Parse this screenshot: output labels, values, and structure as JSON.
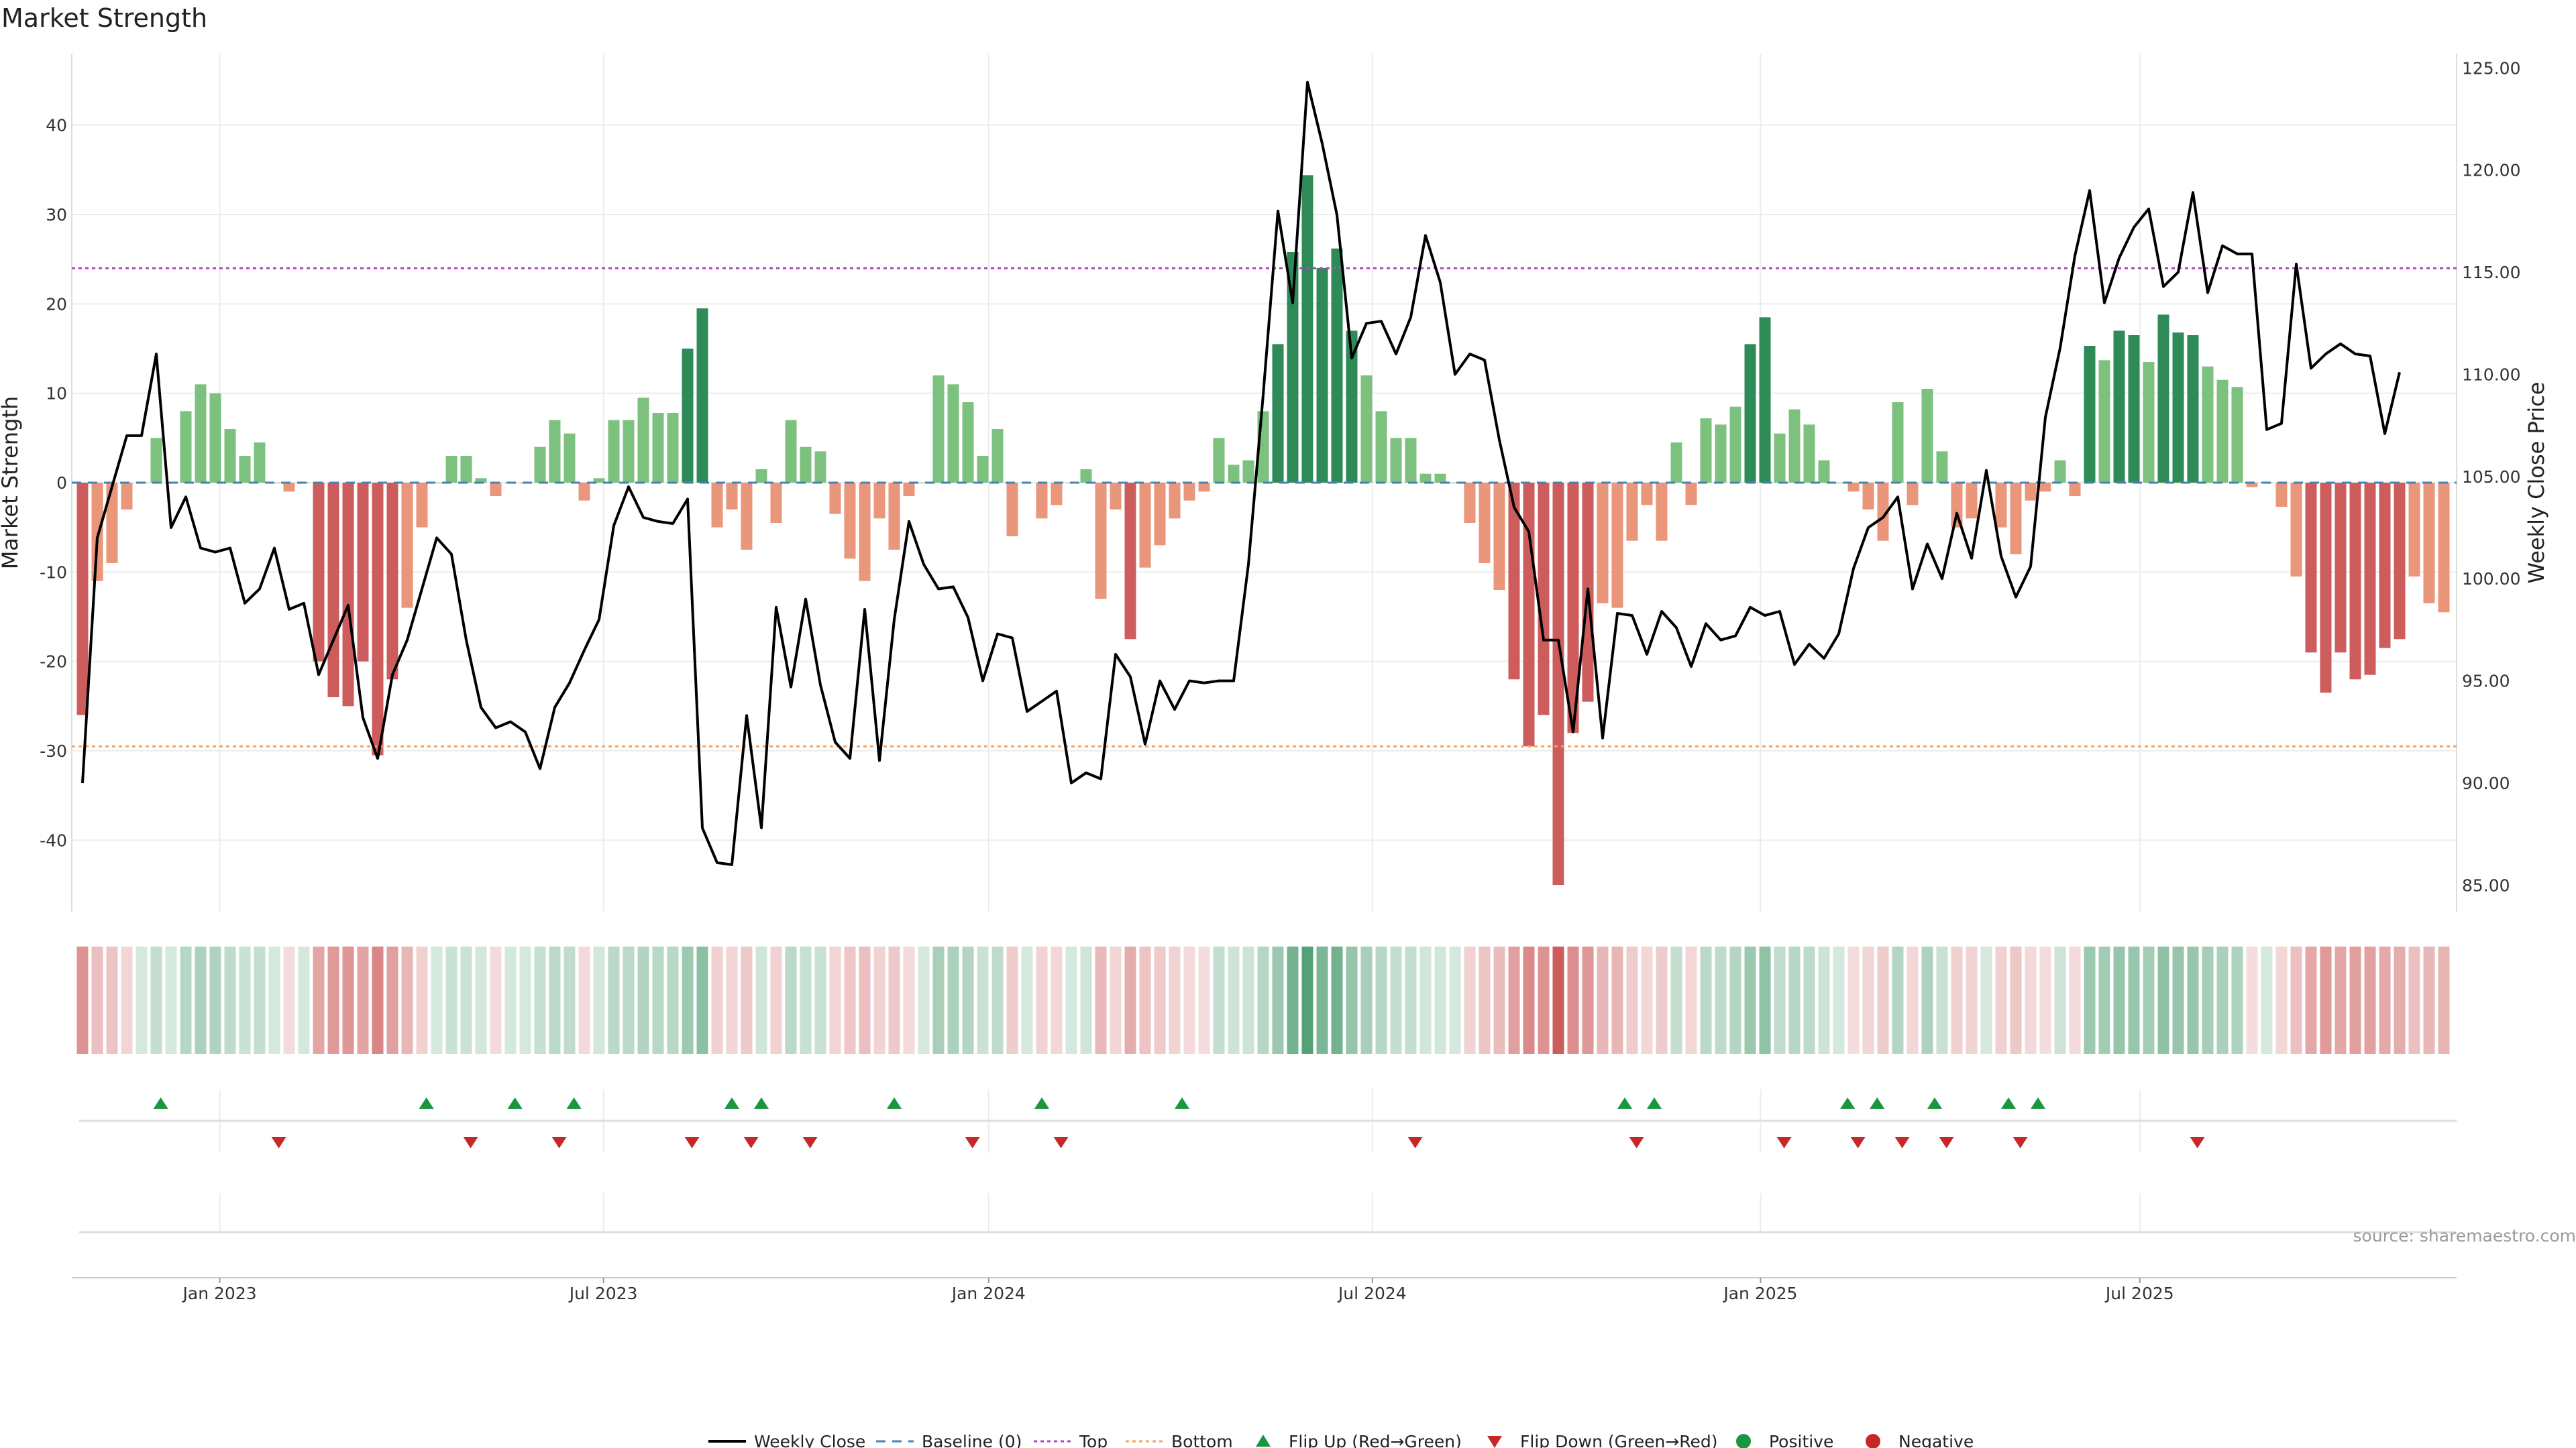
{
  "title": "Market Strength",
  "source": "source: sharemaestro.com",
  "colors": {
    "strong_green": "#2e8b57",
    "light_green": "#7cc17e",
    "strong_red": "#cd5c5c",
    "light_red": "#e9967a",
    "price_line": "#000000",
    "top_line": "#b146c2",
    "bottom_line": "#f4a460",
    "baseline": "#4682b4",
    "flip_up": "#1a9641",
    "flip_down": "#c62828",
    "grid": "#ececec"
  },
  "chart_data": {
    "type": "bar",
    "x_unit": "weeks from first bar (first bar = week of 2022-10-24)",
    "x_ticks": [
      {
        "label": "Jan 2023",
        "week": 9.3
      },
      {
        "label": "Jul 2023",
        "week": 35.3
      },
      {
        "label": "Jan 2024",
        "week": 61.4
      },
      {
        "label": "Jul 2024",
        "week": 87.4
      },
      {
        "label": "Jan 2025",
        "week": 113.7
      },
      {
        "label": "Jul 2025",
        "week": 139.4
      }
    ],
    "left_axis": {
      "label": "Market Strength",
      "ylim": [
        -48,
        48
      ],
      "ticks": [
        40,
        30,
        20,
        10,
        0,
        -10,
        -20,
        -30,
        -40
      ]
    },
    "right_axis": {
      "label": "Weekly Close Price",
      "ylim": [
        83.7,
        125.7
      ],
      "ticks": [
        "125.00",
        "120.00",
        "115.00",
        "110.00",
        "105.00",
        "100.00",
        "95.00",
        "90.00",
        "85.00"
      ]
    },
    "top_level": 24,
    "bottom_level": -29.5,
    "baseline_level": 0,
    "series": [
      {
        "name": "Market Strength",
        "values": [
          -26,
          -11,
          -9,
          -3,
          0,
          5,
          0,
          8,
          11,
          10,
          6,
          3,
          4.5,
          0,
          -1,
          0,
          -20,
          -24,
          -25,
          -20,
          -30.5,
          -22,
          -14,
          -5,
          0,
          3,
          3,
          0.5,
          -1.5,
          0,
          0,
          4,
          7,
          5.5,
          -2,
          0.5,
          7,
          7,
          9.5,
          7.8,
          7.8,
          15,
          19.5,
          -5,
          -3,
          -7.5,
          1.5,
          -4.5,
          7,
          4,
          3.5,
          -3.5,
          -8.5,
          -11,
          -4,
          -7.5,
          -1.5,
          0,
          12,
          11,
          9,
          3,
          6,
          -6,
          0,
          -4,
          -2.5,
          0,
          1.5,
          -13,
          -3,
          -17.5,
          -9.5,
          -7,
          -4,
          -2,
          -1,
          5,
          2,
          2.5,
          8,
          15.5,
          25.8,
          34.4,
          24,
          26.2,
          17,
          12,
          8,
          5,
          5,
          1,
          1,
          0,
          -4.5,
          -9,
          -12,
          -22,
          -29.5,
          -26,
          -45,
          -28,
          -24.5,
          -13.5,
          -14,
          -6.5,
          -2.5,
          -6.5,
          4.5,
          -2.5,
          7.2,
          6.5,
          8.5,
          15.5,
          18.5,
          5.5,
          8.2,
          6.5,
          2.5,
          0,
          -1,
          -3,
          -6.5,
          9,
          -2.5,
          10.5,
          3.5,
          -5,
          -4,
          0,
          -5,
          -8,
          -2,
          -1,
          2.5,
          -1.5,
          15.3,
          13.7,
          17,
          16.5,
          13.5,
          18.8,
          16.8,
          16.5,
          13,
          11.5,
          10.7,
          -0.5,
          0,
          -2.7,
          -10.5,
          -19,
          -23.5,
          -19,
          -22,
          -21.5,
          -18.5,
          -17.5,
          -10.5,
          -13.5,
          -14.5
        ]
      },
      {
        "name": "Weekly Close",
        "values": [
          90,
          102,
          104.5,
          107,
          107,
          111,
          102.5,
          104,
          101.5,
          101.3,
          101.5,
          98.8,
          99.5,
          101.5,
          98.5,
          98.8,
          95.3,
          97,
          98.7,
          93.2,
          91.2,
          95.3,
          97,
          99.5,
          102,
          101.2,
          97,
          93.7,
          92.7,
          93,
          92.5,
          90.7,
          93.7,
          94.9,
          96.5,
          98,
          102.6,
          104.5,
          103,
          102.8,
          102.7,
          103.9,
          87.8,
          86.1,
          86,
          93.3,
          87.8,
          98.6,
          94.7,
          99,
          94.8,
          92,
          91.2,
          98.5,
          91.1,
          98,
          102.8,
          100.7,
          99.5,
          99.6,
          98.1,
          95,
          97.3,
          97.1,
          93.5,
          94,
          94.5,
          90,
          90.5,
          90.2,
          96.3,
          95.2,
          91.9,
          95,
          93.6,
          95,
          94.9,
          95,
          95,
          100.7,
          109,
          118,
          113.5,
          124.3,
          121.3,
          117.8,
          110.8,
          112.5,
          112.6,
          111,
          112.8,
          116.8,
          114.5,
          110,
          111,
          110.7,
          106.8,
          103.5,
          102.3,
          97,
          97,
          92.5,
          99.5,
          92.2,
          98.3,
          98.2,
          96.3,
          98.4,
          97.6,
          95.7,
          97.8,
          97,
          97.2,
          98.6,
          98.2,
          98.4,
          95.8,
          96.8,
          96.1,
          97.3,
          100.5,
          102.5,
          103,
          104,
          99.5,
          101.7,
          100,
          103.2,
          101,
          105.3,
          101.1,
          99.1,
          100.6,
          107.9,
          111.3,
          115.8,
          119,
          113.5,
          115.7,
          117.2,
          118.1,
          114.3,
          115,
          118.9,
          114,
          116.3,
          115.9,
          115.9,
          107.3,
          107.6,
          115.4,
          110.3,
          111,
          111.5,
          111,
          110.9,
          107.1,
          110.1
        ]
      }
    ],
    "flip_up_weeks": [
      5.3,
      23.3,
      29.3,
      33.3,
      44.0,
      46.0,
      55.0,
      65.0,
      74.5,
      104.5,
      106.5,
      119.6,
      121.6,
      125.5,
      130.5,
      132.5
    ],
    "flip_down_weeks": [
      13.3,
      26.3,
      32.3,
      41.3,
      45.3,
      49.3,
      60.3,
      66.3,
      90.3,
      105.3,
      115.3,
      120.3,
      123.3,
      126.3,
      131.3,
      143.3
    ],
    "legend": [
      "Weekly Close",
      "Baseline (0)",
      "Top",
      "Bottom",
      "Flip Up (Red→Green)",
      "Flip Down (Green→Red)",
      "Positive",
      "Negative"
    ]
  }
}
